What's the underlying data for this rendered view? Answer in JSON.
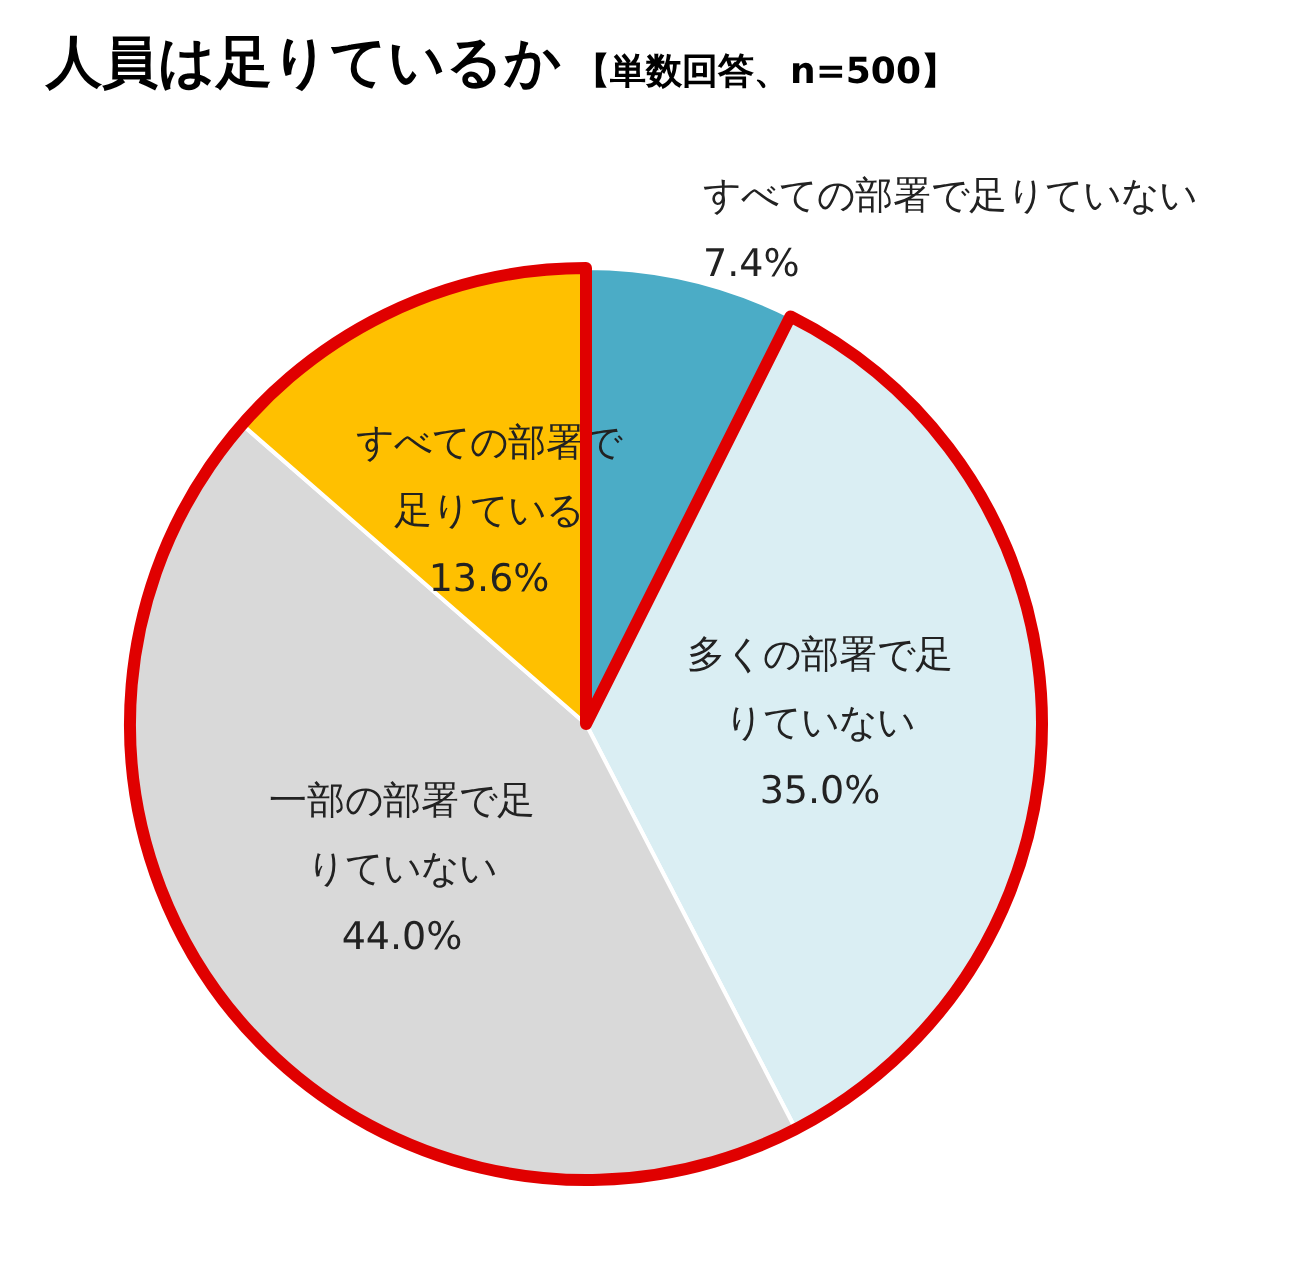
{
  "chart_data": {
    "type": "pie",
    "title": "人員は足りているか",
    "subtitle": "【単数回答、n=500】",
    "categories": [
      "すべての部署で足りていない",
      "多くの部署で足りていない",
      "一部の部署で足りていない",
      "すべての部署で足りている"
    ],
    "values": [
      7.4,
      35.0,
      44.0,
      13.6
    ],
    "colors": [
      "#4bacc6",
      "#daeef3",
      "#d9d9d9",
      "#ffc000"
    ],
    "value_labels": [
      "7.4%",
      "35.0%",
      "44.0%",
      "13.6%"
    ],
    "legend": false
  }
}
